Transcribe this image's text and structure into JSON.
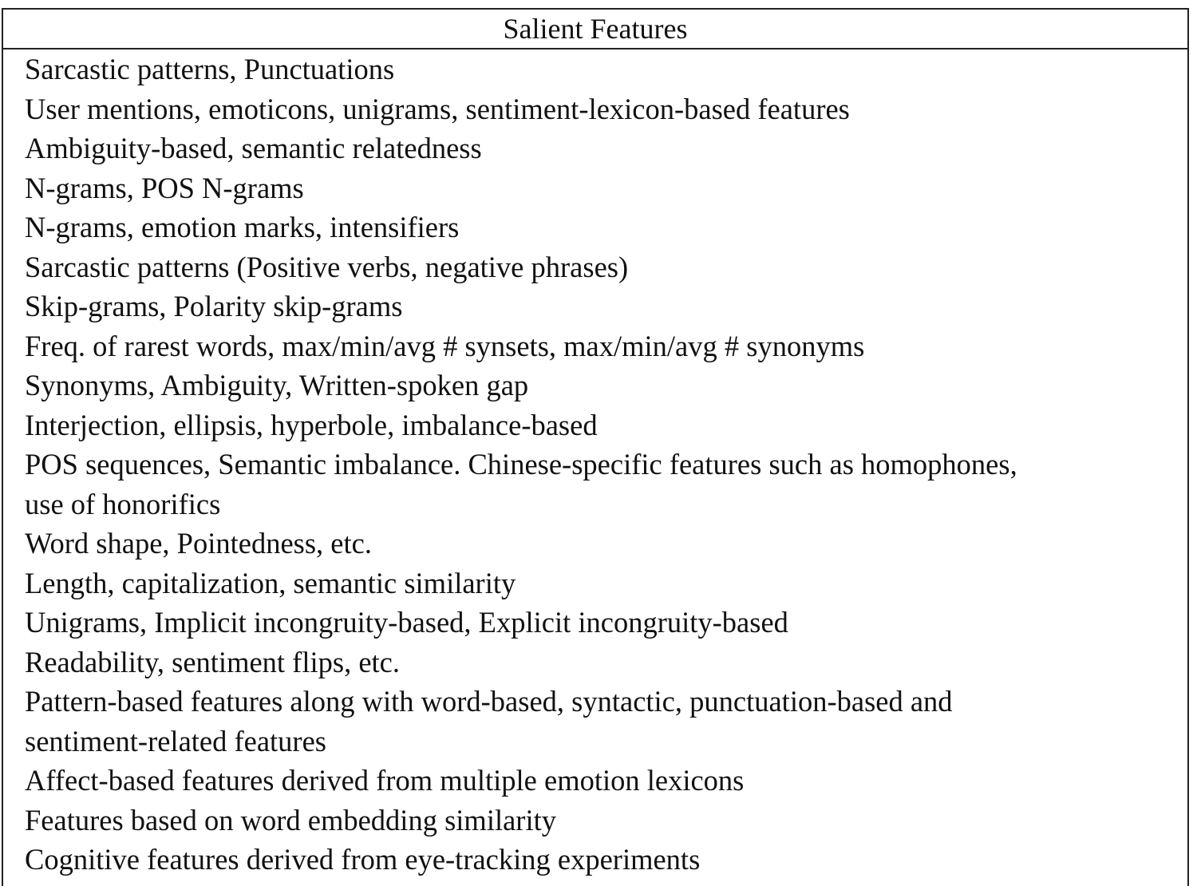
{
  "table": {
    "header": "Salient Features",
    "rows": [
      {
        "lines": [
          "Sarcastic patterns, Punctuations"
        ]
      },
      {
        "lines": [
          "User mentions, emoticons, unigrams, sentiment-lexicon-based features"
        ]
      },
      {
        "lines": [
          "Ambiguity-based, semantic relatedness"
        ]
      },
      {
        "lines": [
          "N-grams, POS N-grams"
        ]
      },
      {
        "lines": [
          "N-grams, emotion marks, intensifiers"
        ]
      },
      {
        "lines": [
          "Sarcastic patterns (Positive verbs, negative phrases)"
        ]
      },
      {
        "lines": [
          "Skip-grams, Polarity skip-grams"
        ]
      },
      {
        "lines": [
          "Freq. of rarest words, max/min/avg # synsets, max/min/avg # synonyms"
        ]
      },
      {
        "lines": [
          "Synonyms, Ambiguity, Written-spoken gap"
        ]
      },
      {
        "lines": [
          "Interjection, ellipsis, hyperbole, imbalance-based"
        ]
      },
      {
        "lines": [
          "POS sequences, Semantic imbalance. Chinese-specific features such as homophones,",
          "use of honorifics"
        ]
      },
      {
        "lines": [
          "Word shape, Pointedness, etc."
        ]
      },
      {
        "lines": [
          "Length, capitalization, semantic similarity"
        ]
      },
      {
        "lines": [
          "Unigrams, Implicit incongruity-based, Explicit incongruity-based"
        ]
      },
      {
        "lines": [
          "Readability, sentiment flips, etc."
        ]
      },
      {
        "lines": [
          "Pattern-based features along with word-based, syntactic, punctuation-based and",
          "sentiment-related features"
        ]
      },
      {
        "lines": [
          "Affect-based features derived from multiple emotion lexicons"
        ]
      },
      {
        "lines": [
          "Features based on word embedding similarity"
        ]
      },
      {
        "lines": [
          "Cognitive features derived from eye-tracking experiments"
        ]
      }
    ]
  }
}
